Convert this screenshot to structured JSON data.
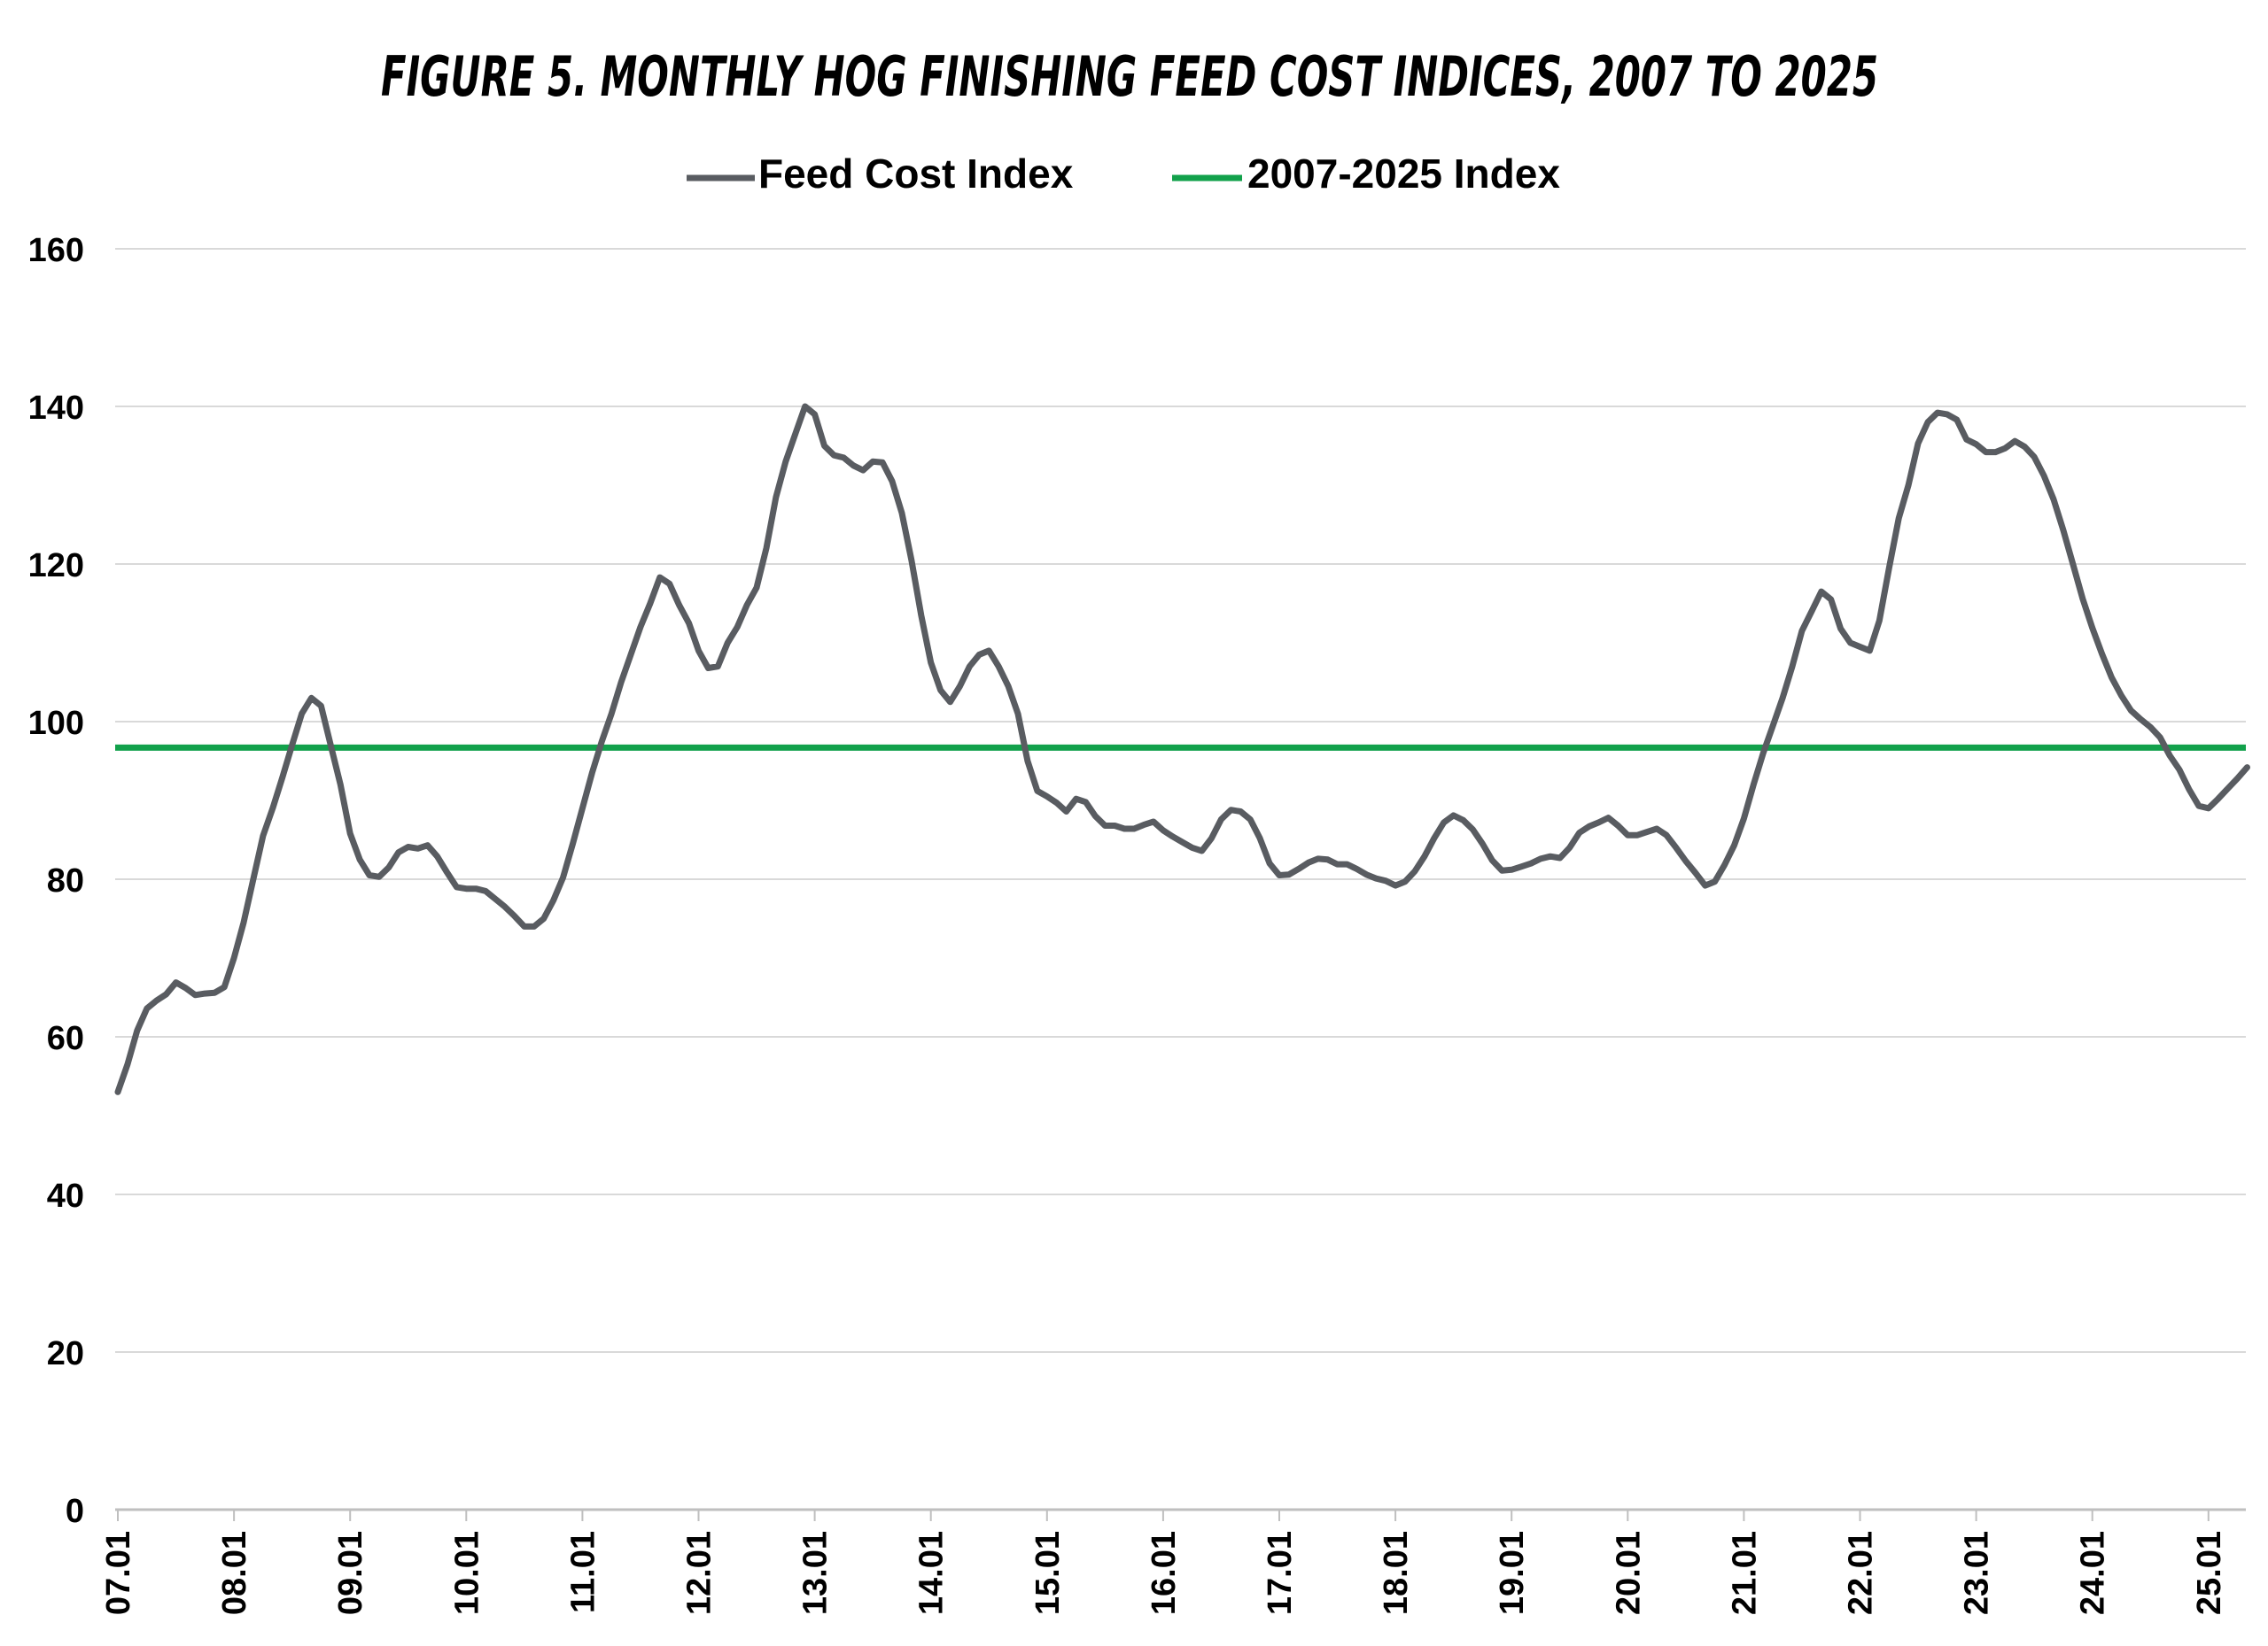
{
  "chart_data": {
    "type": "line",
    "title": "FIGURE 5.  MONTHLY HOG FINISHING FEED COST INDICES, 2007 TO 2025",
    "xlabel": "",
    "ylabel": "",
    "ylim": [
      0,
      160
    ],
    "yticks": [
      0,
      20,
      40,
      60,
      80,
      100,
      120,
      140,
      160
    ],
    "xticks": [
      "07.01",
      "08.01",
      "09.01",
      "10.01",
      "11.01",
      "12.01",
      "13.01",
      "14.01",
      "15.01",
      "16.01",
      "17.01",
      "18.01",
      "19.01",
      "20.01",
      "21.01",
      "22.01",
      "23.01",
      "24.01",
      "25.01"
    ],
    "grid": true,
    "legend_position": "top-center",
    "colors": {
      "feed_cost": "#595c61",
      "benchmark": "#12a14b",
      "grid": "#d9d9d9",
      "axis": "#bfbfbf",
      "text": "#000000"
    },
    "series": [
      {
        "name": "Feed Cost Index",
        "start": "07.01",
        "values": [
          53.0,
          56.5,
          60.8,
          63.6,
          64.6,
          65.4,
          66.9,
          66.2,
          65.3,
          65.5,
          65.6,
          66.3,
          70.0,
          74.5,
          80.0,
          85.5,
          89.0,
          92.9,
          97.0,
          101.0,
          103.0,
          102.0,
          97.0,
          92.0,
          85.8,
          82.5,
          80.5,
          80.3,
          81.5,
          83.4,
          84.1,
          83.9,
          84.3,
          82.9,
          80.9,
          79.0,
          78.8,
          78.8,
          78.5,
          77.5,
          76.5,
          75.3,
          74.0,
          74.0,
          75.0,
          77.3,
          80.2,
          84.5,
          89.0,
          93.5,
          97.5,
          101.0,
          105.0,
          108.5,
          112.0,
          115.0,
          118.3,
          117.5,
          114.8,
          112.5,
          109.0,
          106.8,
          107.0,
          110.0,
          112.0,
          114.8,
          117.0,
          122.0,
          128.5,
          133.0,
          136.5,
          140.0,
          139.0,
          135.0,
          133.8,
          133.5,
          132.5,
          131.9,
          133.0,
          132.9,
          130.5,
          126.5,
          120.5,
          113.5,
          107.5,
          104.0,
          102.5,
          104.5,
          107.0,
          108.5,
          109.0,
          107.0,
          104.5,
          101.0,
          95.0,
          91.2,
          90.5,
          89.7,
          88.6,
          90.2,
          89.8,
          88.0,
          86.8,
          86.8,
          86.4,
          86.4,
          86.9,
          87.3,
          86.2,
          85.4,
          84.7,
          84.0,
          83.6,
          85.2,
          87.6,
          88.8,
          88.6,
          87.6,
          85.2,
          82.0,
          80.5,
          80.6,
          81.3,
          82.1,
          82.6,
          82.5,
          81.9,
          81.9,
          81.3,
          80.6,
          80.1,
          79.8,
          79.2,
          79.7,
          81.0,
          82.9,
          85.2,
          87.2,
          88.1,
          87.5,
          86.3,
          84.5,
          82.4,
          81.1,
          81.2,
          81.6,
          82.0,
          82.6,
          82.9,
          82.7,
          84.0,
          85.9,
          86.7,
          87.2,
          87.8,
          86.8,
          85.6,
          85.6,
          86.0,
          86.4,
          85.6,
          84.0,
          82.3,
          80.8,
          79.2,
          79.7,
          81.8,
          84.3,
          87.7,
          92.0,
          96.0,
          99.5,
          103.0,
          107.0,
          111.5,
          114.0,
          116.5,
          115.5,
          111.8,
          110.0,
          109.5,
          109.0,
          112.8,
          119.5,
          125.8,
          130.0,
          135.3,
          138.0,
          139.2,
          139.0,
          138.3,
          135.8,
          135.2,
          134.2,
          134.2,
          134.7,
          135.6,
          134.9,
          133.6,
          131.2,
          128.2,
          124.3,
          120.0,
          115.6,
          111.9,
          108.6,
          105.6,
          103.3,
          101.4,
          100.3,
          99.3,
          98.0,
          95.7,
          93.9,
          91.4,
          89.3,
          89.0,
          90.2,
          91.5,
          92.8,
          94.2
        ]
      },
      {
        "name": "2007-2025 Index",
        "values": [
          96.7,
          96.7
        ]
      }
    ]
  }
}
